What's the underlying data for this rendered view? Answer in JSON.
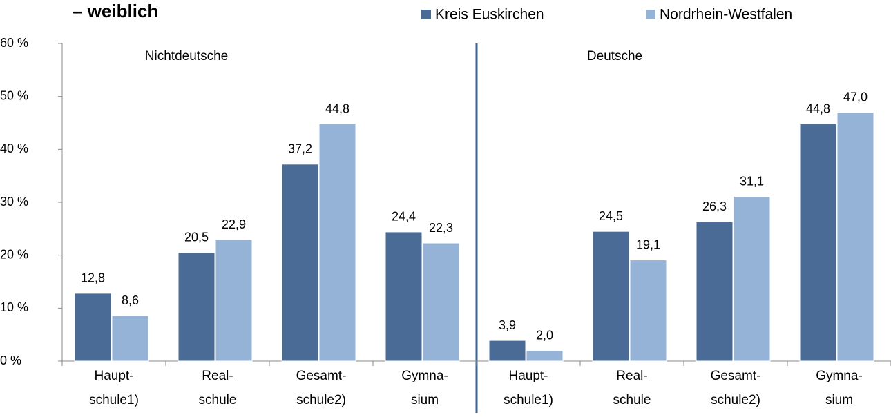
{
  "chart_data": {
    "type": "bar",
    "title": "– weiblich",
    "categories": [
      "Haupt-\nschule1)",
      "Real-\nschule",
      "Gesamt-\nschule2)",
      "Gymna-\nsium",
      "Haupt-\nschule1)",
      "Real-\nschule",
      "Gesamt-\nschule2)",
      "Gymna-\nsium"
    ],
    "series": [
      {
        "name": "Kreis Euskirchen",
        "color": "#4a6b96",
        "values": [
          12.8,
          20.5,
          37.2,
          24.4,
          3.9,
          24.5,
          26.3,
          44.8
        ],
        "value_labels": [
          "12,8",
          "20,5",
          "37,2",
          "24,4",
          "3,9",
          "24,5",
          "26,3",
          "44,8"
        ]
      },
      {
        "name": "Nordrhein-Westfalen",
        "color": "#95b3d7",
        "values": [
          8.6,
          22.9,
          44.8,
          22.3,
          2.0,
          19.1,
          31.1,
          47.0
        ],
        "value_labels": [
          "8,6",
          "22,9",
          "44,8",
          "22,3",
          "2,0",
          "19,1",
          "31,1",
          "47,0"
        ]
      }
    ],
    "annotations": [
      "Nichtdeutsche",
      "Deutsche"
    ],
    "ylim": [
      0,
      60
    ],
    "yticks": [
      {
        "value": 0,
        "label": "0 %"
      },
      {
        "value": 10,
        "label": "10 %"
      },
      {
        "value": 20,
        "label": "20 %"
      },
      {
        "value": 30,
        "label": "30 %"
      },
      {
        "value": 40,
        "label": "40 %"
      },
      {
        "value": 50,
        "label": "50 %"
      },
      {
        "value": 60,
        "label": "60 %"
      }
    ],
    "grid": false,
    "legend": "top"
  }
}
